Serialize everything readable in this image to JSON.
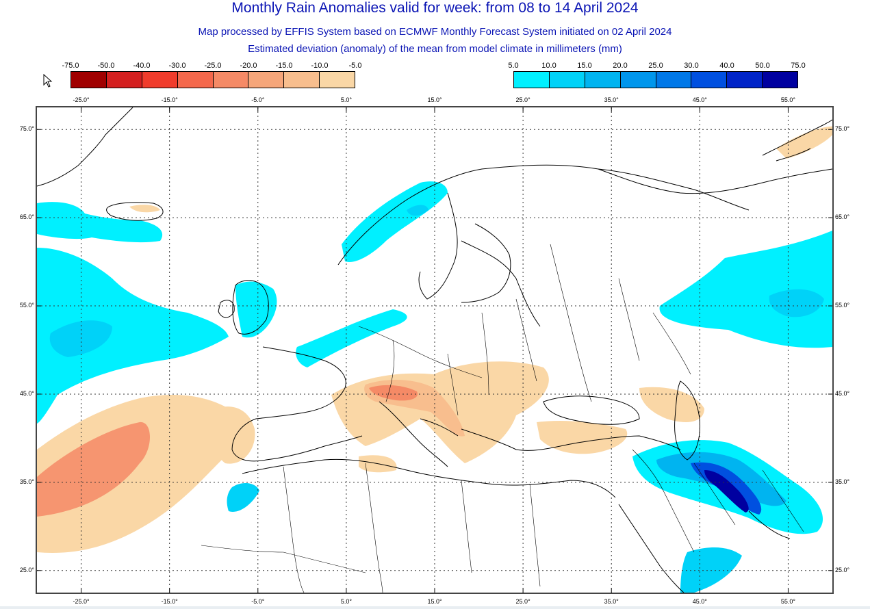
{
  "header": {
    "title": "Monthly Rain Anomalies valid for week: from 08 to 14 April 2024",
    "subtitle1": "Map processed by EFFIS System based on ECMWF Monthly Forecast System initiated on 02 April 2024",
    "subtitle2": "Estimated deviation (anomaly) of the mean from model climate in millimeters (mm)"
  },
  "legend_negative": {
    "labels": [
      "-75.0",
      "-50.0",
      "-40.0",
      "-30.0",
      "-25.0",
      "-20.0",
      "-15.0",
      "-10.0",
      "-5.0"
    ],
    "colors": [
      "#a00000",
      "#d42020",
      "#f03c2c",
      "#f4684c",
      "#f58a66",
      "#f6a67a",
      "#f8be8e",
      "#fad7a6"
    ]
  },
  "legend_positive": {
    "labels": [
      "5.0",
      "10.0",
      "15.0",
      "20.0",
      "25.0",
      "30.0",
      "40.0",
      "50.0",
      "75.0"
    ],
    "colors": [
      "#00f0ff",
      "#00d2f8",
      "#00b4f0",
      "#0096ec",
      "#0078e8",
      "#0050e0",
      "#0024c8",
      "#0000a0"
    ]
  },
  "map": {
    "lon_labels": [
      "-25.0°",
      "-15.0°",
      "-5.0°",
      "5.0°",
      "15.0°",
      "25.0°",
      "35.0°",
      "45.0°",
      "55.0°"
    ],
    "lat_labels": [
      "75.0°",
      "65.0°",
      "55.0°",
      "45.0°",
      "35.0°",
      "25.0°"
    ],
    "lon_values": [
      -25,
      -15,
      -5,
      5,
      15,
      25,
      35,
      45,
      55
    ],
    "lat_values": [
      75,
      65,
      55,
      45,
      35,
      25
    ],
    "lon_range": [
      -30,
      60
    ],
    "lat_range": [
      22.5,
      77.5
    ],
    "grid": "dotted",
    "coastline_color": "#000000",
    "anomaly_colors": {
      "dry_light": "#fad7a6",
      "dry_medium": "#f8be8e",
      "dry_strong": "#f58a66",
      "wet_light": "#00f0ff",
      "wet_medium": "#00d2f8",
      "wet_strong": "#00b4f0",
      "wet_heavy": "#0078e8",
      "wet_extreme": "#0024c8",
      "wet_max": "#0000a0"
    }
  }
}
